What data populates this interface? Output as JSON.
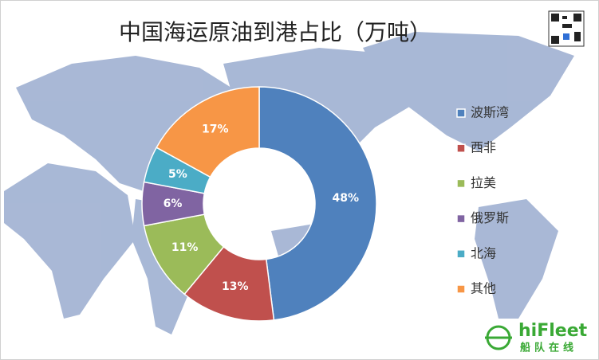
{
  "chart_data": {
    "type": "pie",
    "donut": true,
    "title": "中国海运原油到港占比（万吨）",
    "categories": [
      "波斯湾",
      "西非",
      "拉美",
      "俄罗斯",
      "北海",
      "其他"
    ],
    "values": [
      48,
      13,
      11,
      6,
      5,
      17
    ],
    "value_labels": [
      "48%",
      "13%",
      "11%",
      "6%",
      "5%",
      "17%"
    ],
    "colors": [
      "#4f81bd",
      "#c0504d",
      "#9bbb59",
      "#8064a2",
      "#4bacc6",
      "#f79646"
    ],
    "legend": "right"
  },
  "logo": {
    "brand": "hiFleet",
    "subtitle": "船队在线"
  }
}
